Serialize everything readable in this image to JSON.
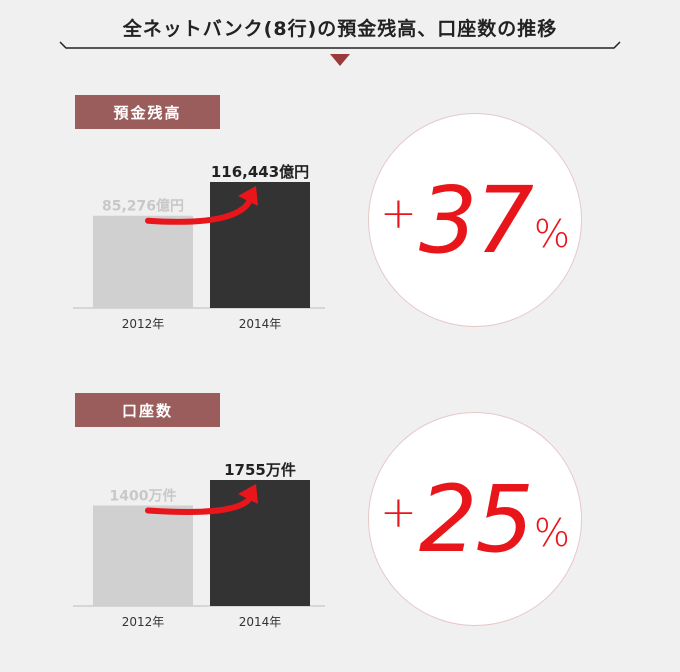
{
  "title": "全ネットバンク(8行)の預金残高、口座数の推移",
  "colors": {
    "accent": "#e8161b",
    "label_bg": "#9b5c5c",
    "bar_2012": "#d0d0d0",
    "bar_2014": "#333333",
    "arrow": "#e8161b"
  },
  "chart_data": [
    {
      "type": "bar",
      "section_label": "預金残高",
      "categories": [
        "2012年",
        "2014年"
      ],
      "values": [
        85276,
        116443
      ],
      "value_labels": [
        "85,276億円",
        "116,443億円"
      ],
      "unit": "億円",
      "change_label": {
        "plus": "+",
        "number": "37",
        "percent": "%"
      }
    },
    {
      "type": "bar",
      "section_label": "口座数",
      "categories": [
        "2012年",
        "2014年"
      ],
      "values": [
        1400,
        1755
      ],
      "value_labels": [
        "1400万件",
        "1755万件"
      ],
      "unit": "万件",
      "change_label": {
        "plus": "+",
        "number": "25",
        "percent": "%"
      }
    }
  ]
}
